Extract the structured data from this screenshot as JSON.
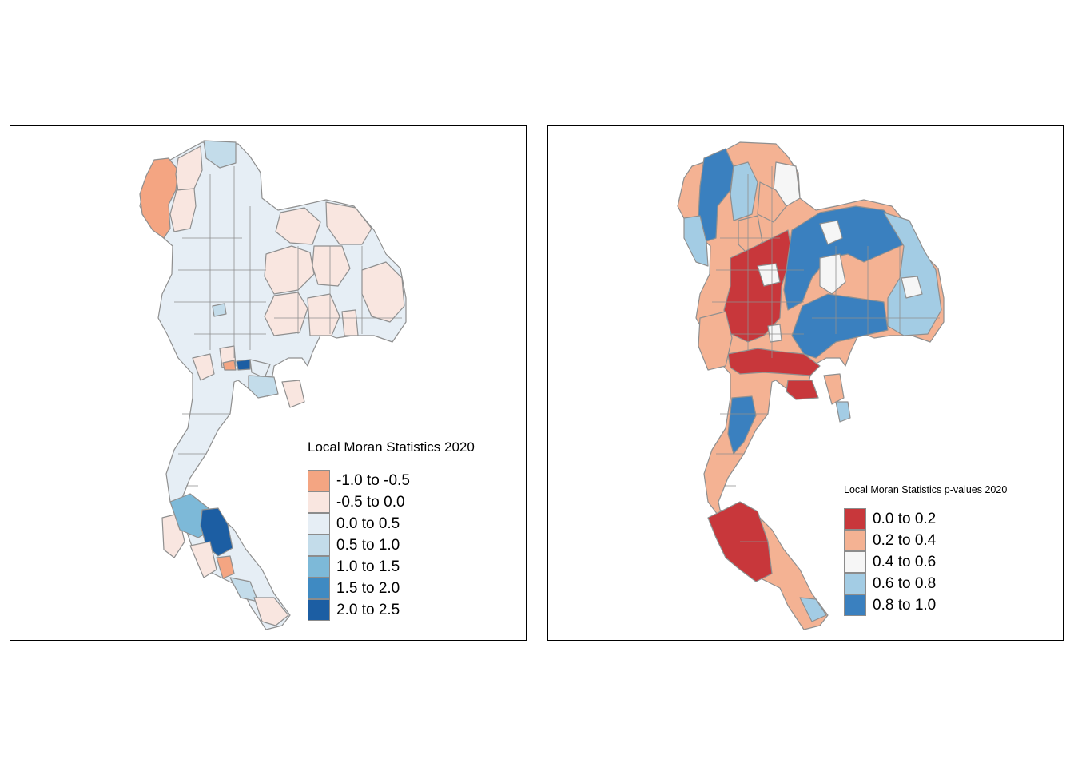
{
  "maps": [
    {
      "id": "left",
      "legend": {
        "title": "Local Moran Statistics  2020",
        "classes": [
          {
            "label": "-1.0 to -0.5",
            "color": "#f4a582"
          },
          {
            "label": "-0.5 to 0.0",
            "color": "#f9e6e0"
          },
          {
            "label": "0.0 to 0.5",
            "color": "#e6eef5"
          },
          {
            "label": "0.5 to 1.0",
            "color": "#c3dcea"
          },
          {
            "label": "1.0 to 1.5",
            "color": "#7db9d8"
          },
          {
            "label": "1.5 to 2.0",
            "color": "#3f8ac2"
          },
          {
            "label": "2.0 to 2.5",
            "color": "#1c5ea3"
          }
        ]
      }
    },
    {
      "id": "right",
      "legend": {
        "title": "Local Moran Statistics p-values  2020",
        "classes": [
          {
            "label": "0.0 to 0.2",
            "color": "#c8373b"
          },
          {
            "label": "0.2 to 0.4",
            "color": "#f4b293"
          },
          {
            "label": "0.4 to 0.6",
            "color": "#f6f6f6"
          },
          {
            "label": "0.6 to 0.8",
            "color": "#a3cce4"
          },
          {
            "label": "0.8 to 1.0",
            "color": "#3a80bf"
          }
        ]
      }
    }
  ]
}
